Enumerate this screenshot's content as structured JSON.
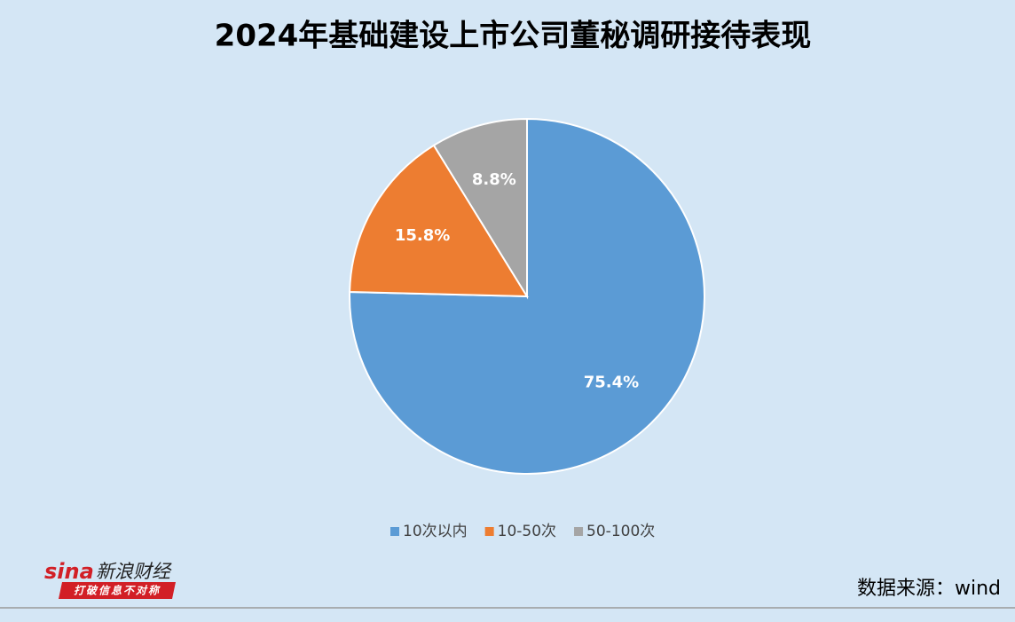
{
  "chart_data": {
    "type": "pie",
    "title": "2024年基础建设上市公司董秘调研接待表现",
    "categories": [
      "10次以内",
      "10-50次",
      "50-100次"
    ],
    "values": [
      75.4,
      15.8,
      8.8
    ],
    "value_labels": [
      "75.4%",
      "15.8%",
      "8.8%"
    ],
    "colors": [
      "#5b9bd5",
      "#ed7d31",
      "#a5a5a5"
    ],
    "legend": "bottom",
    "source": "数据来源：wind"
  },
  "logo": {
    "brand": "sina",
    "name": "新浪财经",
    "slogan": "打破信息不对称"
  }
}
